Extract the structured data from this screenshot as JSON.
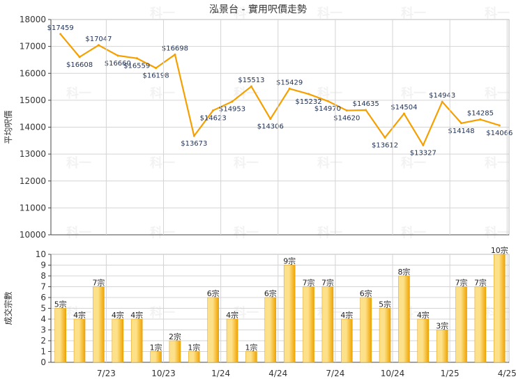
{
  "title": "泓景台 - 實用呎價走勢",
  "watermark": "科一",
  "colors": {
    "line": "#f5a000",
    "bar_light": "#fde18a",
    "bar_dark": "#f0a400",
    "grid": "#d4d4d4",
    "axis": "#444444",
    "title": "#333333"
  },
  "chart_data": [
    {
      "type": "line",
      "ylabel": "平均呎價",
      "ylim": [
        10000,
        18000
      ],
      "yticks": [
        10000,
        11000,
        12000,
        13000,
        14000,
        15000,
        16000,
        17000,
        18000
      ],
      "grid": true,
      "points": [
        {
          "x": 0,
          "y": 17459,
          "label": "$17459"
        },
        {
          "x": 1,
          "y": 16608,
          "label": "$16608"
        },
        {
          "x": 2,
          "y": 17047,
          "label": "$17047"
        },
        {
          "x": 3,
          "y": 16660,
          "label": "$16660"
        },
        {
          "x": 4,
          "y": 16559,
          "label": "$16559"
        },
        {
          "x": 5,
          "y": 16198,
          "label": "$16198"
        },
        {
          "x": 6,
          "y": 16698,
          "label": "$16698"
        },
        {
          "x": 7,
          "y": 13673,
          "label": "$13673"
        },
        {
          "x": 8,
          "y": 14623,
          "label": "$14623"
        },
        {
          "x": 9,
          "y": 14953,
          "label": "$14953"
        },
        {
          "x": 10,
          "y": 15513,
          "label": "$15513"
        },
        {
          "x": 11,
          "y": 14306,
          "label": "$14306"
        },
        {
          "x": 12,
          "y": 15429,
          "label": "$15429"
        },
        {
          "x": 13,
          "y": 15232,
          "label": "$15232"
        },
        {
          "x": 14,
          "y": 14970,
          "label": "$14970"
        },
        {
          "x": 15,
          "y": 14620,
          "label": "$14620"
        },
        {
          "x": 16,
          "y": 14635,
          "label": "$14635"
        },
        {
          "x": 17,
          "y": 13612,
          "label": "$13612"
        },
        {
          "x": 18,
          "y": 14504,
          "label": "$14504"
        },
        {
          "x": 19,
          "y": 13327,
          "label": "$13327"
        },
        {
          "x": 20,
          "y": 14943,
          "label": "$14943"
        },
        {
          "x": 21,
          "y": 14148,
          "label": "$14148"
        },
        {
          "x": 22,
          "y": 14285,
          "label": "$14285"
        },
        {
          "x": 23,
          "y": 14066,
          "label": "$14066"
        }
      ]
    },
    {
      "type": "bar",
      "ylabel": "成交宗數",
      "ylim": [
        0,
        10
      ],
      "yticks": [
        0,
        1,
        2,
        3,
        4,
        5,
        6,
        7,
        8,
        9,
        10
      ],
      "grid": true,
      "values": [
        5,
        4,
        7,
        4,
        4,
        1,
        2,
        1,
        6,
        4,
        1,
        6,
        9,
        7,
        7,
        4,
        6,
        5,
        8,
        4,
        3,
        7,
        7,
        10
      ],
      "labels": [
        "5宗",
        "4宗",
        "7宗",
        "4宗",
        "4宗",
        "1宗",
        "2宗",
        "1宗",
        "6宗",
        "4宗",
        "1宗",
        "6宗",
        "9宗",
        "7宗",
        "7宗",
        "4宗",
        "6宗",
        "5宗",
        "8宗",
        "4宗",
        "3宗",
        "7宗",
        "7宗",
        "10宗"
      ]
    }
  ],
  "xticks": [
    {
      "label": "7/23",
      "pos": 2.4
    },
    {
      "label": "10/23",
      "pos": 5.4
    },
    {
      "label": "1/24",
      "pos": 8.4
    },
    {
      "label": "4/24",
      "pos": 11.4
    },
    {
      "label": "7/24",
      "pos": 14.4
    },
    {
      "label": "10/24",
      "pos": 17.4
    },
    {
      "label": "1/25",
      "pos": 20.4
    },
    {
      "label": "4/25",
      "pos": 23.4
    }
  ]
}
